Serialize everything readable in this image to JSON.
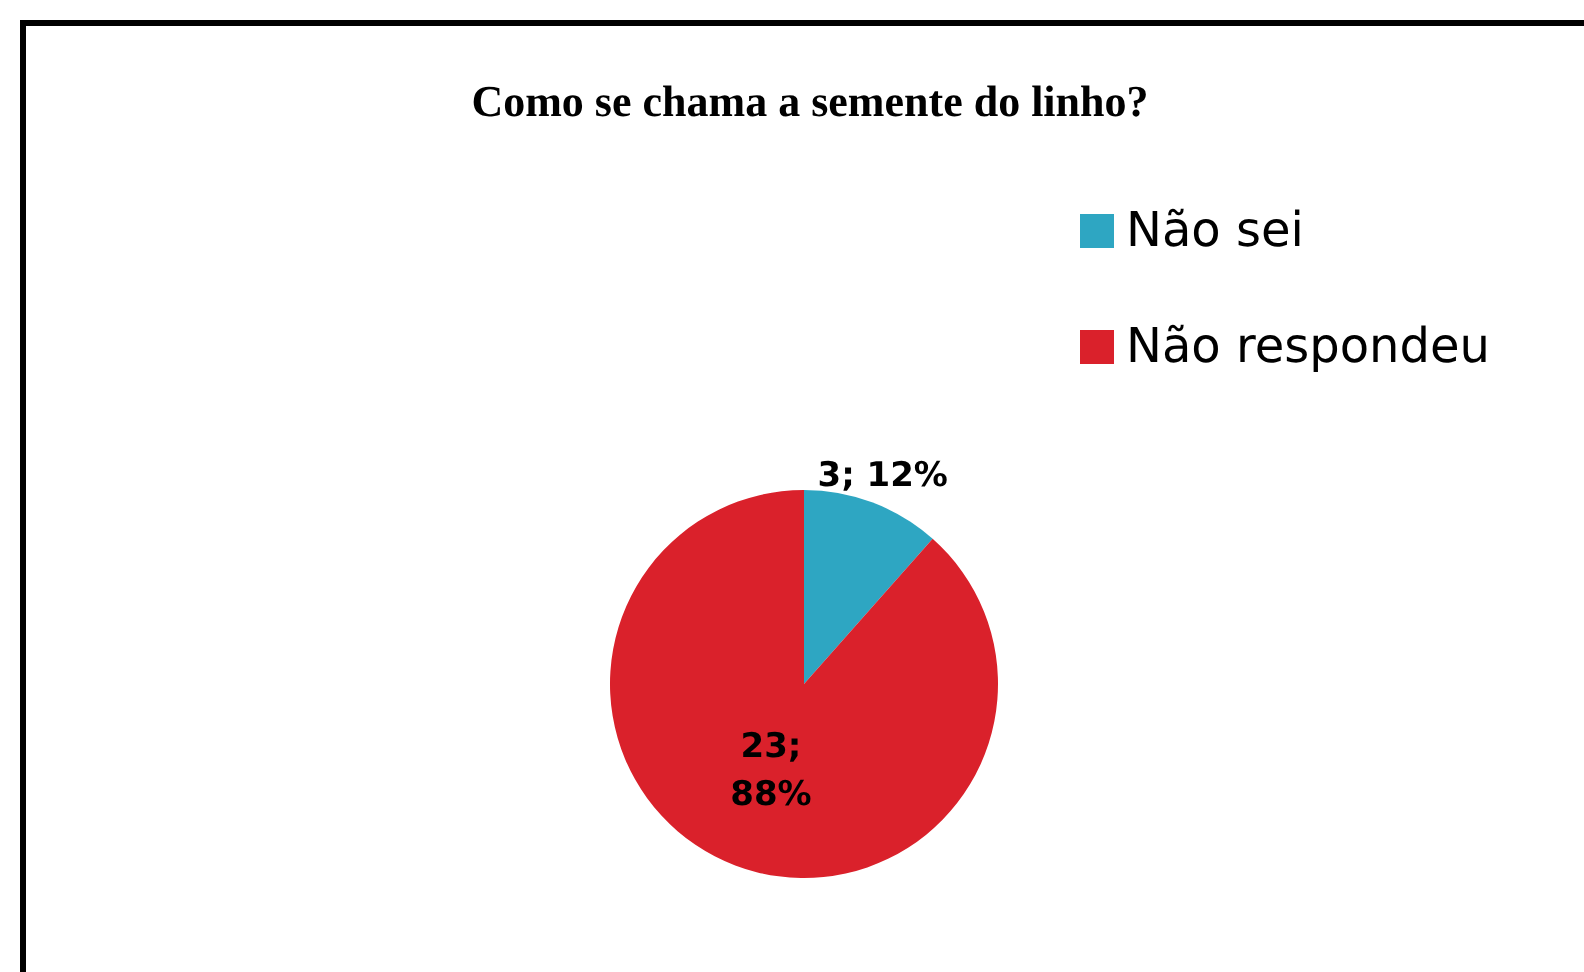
{
  "chart_data": {
    "type": "pie",
    "title": "Como se chama a semente do linho?",
    "categories": [
      "Não sei",
      "Não respondeu"
    ],
    "values": [
      3,
      23
    ],
    "colors": [
      "#2ea6c2",
      "#da212b"
    ],
    "value_labels": [
      "3; 12%",
      "23; 88%"
    ],
    "legend": "top right"
  }
}
